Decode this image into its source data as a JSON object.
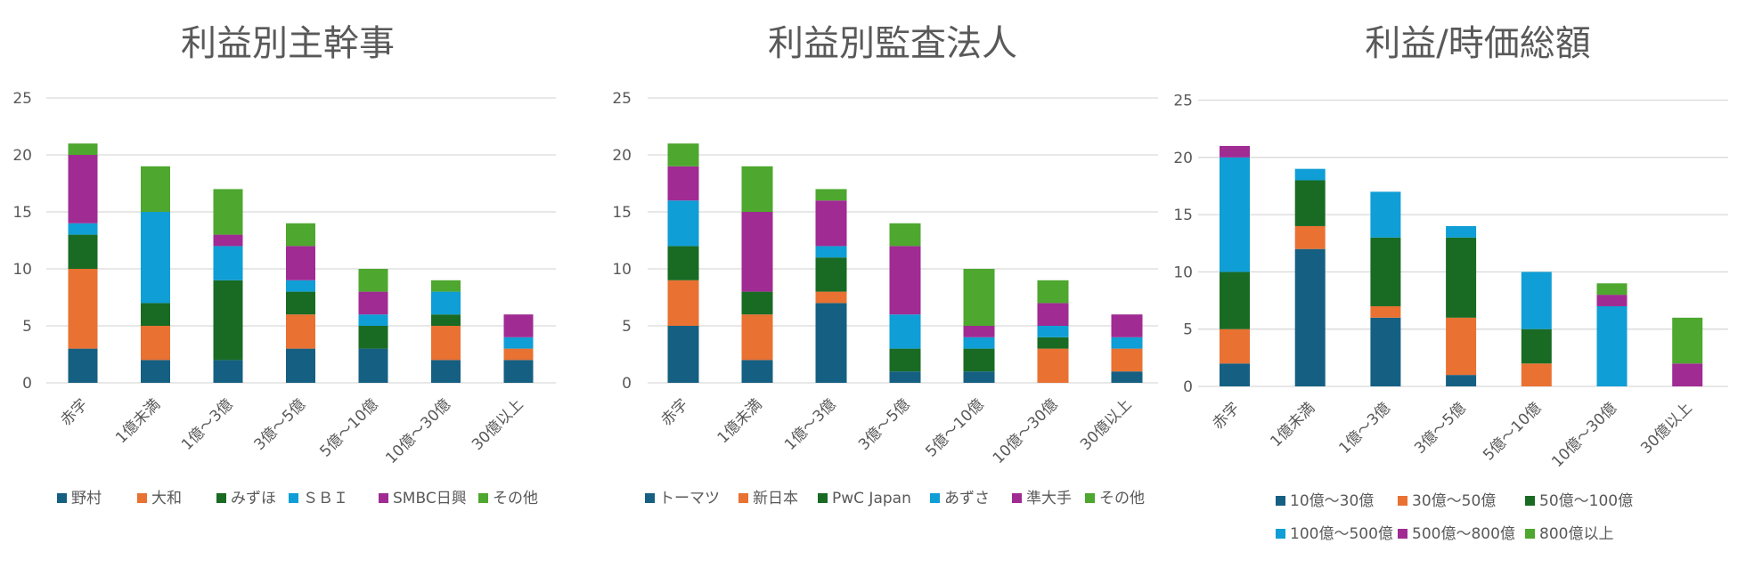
{
  "chart_data": [
    {
      "type": "bar",
      "stacked": true,
      "title": "利益別主幹事",
      "categories": [
        "赤字",
        "1億未満",
        "1億～3億",
        "3億～5億",
        "5億～10億",
        "10億～30億",
        "30億以上"
      ],
      "ylim": [
        0,
        25
      ],
      "yticks": [
        0,
        5,
        10,
        15,
        20,
        25
      ],
      "grid": true,
      "legend_position": "bottom",
      "series": [
        {
          "name": "野村",
          "color": "#156082",
          "values": [
            3,
            2,
            2,
            3,
            3,
            2,
            2
          ]
        },
        {
          "name": "大和",
          "color": "#E97132",
          "values": [
            7,
            3,
            0,
            3,
            0,
            3,
            1
          ]
        },
        {
          "name": "みずほ",
          "color": "#196B24",
          "values": [
            3,
            2,
            7,
            2,
            2,
            1,
            0
          ]
        },
        {
          "name": "ＳＢＩ",
          "color": "#0F9ED5",
          "values": [
            1,
            8,
            3,
            1,
            1,
            2,
            1
          ]
        },
        {
          "name": "SMBC日興",
          "color": "#A02B93",
          "values": [
            6,
            0,
            1,
            3,
            2,
            0,
            2
          ]
        },
        {
          "name": "その他",
          "color": "#4EA72E",
          "values": [
            1,
            4,
            4,
            2,
            2,
            1,
            0
          ]
        }
      ]
    },
    {
      "type": "bar",
      "stacked": true,
      "title": "利益別監査法人",
      "categories": [
        "赤字",
        "1億未満",
        "1億～3億",
        "3億～5億",
        "5億～10億",
        "10億～30億",
        "30億以上"
      ],
      "ylim": [
        0,
        25
      ],
      "yticks": [
        0,
        5,
        10,
        15,
        20,
        25
      ],
      "grid": true,
      "legend_position": "bottom",
      "series": [
        {
          "name": "トーマツ",
          "color": "#156082",
          "values": [
            5,
            2,
            7,
            1,
            1,
            0,
            1
          ]
        },
        {
          "name": "新日本",
          "color": "#E97132",
          "values": [
            4,
            4,
            1,
            0,
            0,
            3,
            2
          ]
        },
        {
          "name": "PwC Japan",
          "color": "#196B24",
          "values": [
            3,
            2,
            3,
            2,
            2,
            1,
            0
          ]
        },
        {
          "name": "あずさ",
          "color": "#0F9ED5",
          "values": [
            4,
            0,
            1,
            3,
            1,
            1,
            1
          ]
        },
        {
          "name": "準大手",
          "color": "#A02B93",
          "values": [
            3,
            7,
            4,
            6,
            1,
            2,
            2
          ]
        },
        {
          "name": "その他",
          "color": "#4EA72E",
          "values": [
            2,
            4,
            1,
            2,
            5,
            2,
            0
          ]
        }
      ]
    },
    {
      "type": "bar",
      "stacked": true,
      "title": "利益/時価総額",
      "categories": [
        "赤字",
        "1億未満",
        "1億～3億",
        "3億～5億",
        "5億～10億",
        "10億～30億",
        "30億以上"
      ],
      "ylim": [
        0,
        25
      ],
      "yticks": [
        0,
        5,
        10,
        15,
        20,
        25
      ],
      "grid": true,
      "legend_position": "bottom",
      "series": [
        {
          "name": "10億～30億",
          "color": "#156082",
          "values": [
            2,
            12,
            6,
            1,
            0,
            0,
            0
          ]
        },
        {
          "name": "30億～50億",
          "color": "#E97132",
          "values": [
            3,
            2,
            1,
            5,
            2,
            0,
            0
          ]
        },
        {
          "name": "50億～100億",
          "color": "#196B24",
          "values": [
            5,
            4,
            6,
            7,
            3,
            0,
            0
          ]
        },
        {
          "name": "100億～500億",
          "color": "#0F9ED5",
          "values": [
            10,
            1,
            4,
            1,
            5,
            7,
            0
          ]
        },
        {
          "name": "500億～800億",
          "color": "#A02B93",
          "values": [
            1,
            0,
            0,
            0,
            0,
            1,
            2
          ]
        },
        {
          "name": "800億以上",
          "color": "#4EA72E",
          "values": [
            0,
            0,
            0,
            0,
            0,
            1,
            4
          ]
        }
      ]
    }
  ]
}
